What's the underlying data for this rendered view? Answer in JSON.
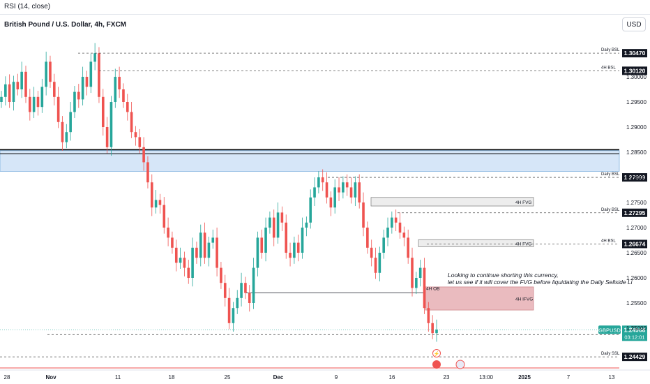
{
  "header": {
    "indicator": "RSI (14, close)",
    "title": "British Pound / U.S. Dollar, 4h, FXCM",
    "currency_button": "USD"
  },
  "note": {
    "line1": "Looking to continue shorting this currency,",
    "line2": "let us see if it will cover the FVG before liquidating the Daily Sellside Li"
  },
  "chart_data": {
    "type": "candlestick",
    "symbol": "GBPUSD",
    "last_price": "1.24968",
    "countdown": "03:12:01",
    "y_ticks": [
      "1.30000",
      "1.29500",
      "1.29000",
      "1.28500",
      "1.28000",
      "1.27500",
      "1.27000",
      "1.26500",
      "1.26000",
      "1.25500",
      "1.25000"
    ],
    "x_ticks": [
      "28",
      "Nov",
      "11",
      "18",
      "25",
      "Dec",
      "9",
      "16",
      "23",
      "13:00",
      "2025",
      "7",
      "13"
    ],
    "levels": [
      {
        "label": "Daily BSL",
        "price": "1.30470"
      },
      {
        "label": "4H BSL",
        "price": "1.30120"
      },
      {
        "label": "Daily BSL",
        "price": "1.27999"
      },
      {
        "label": "Daily BSL",
        "price": "1.27295"
      },
      {
        "label": "4H BSL",
        "price": "1.26674"
      },
      {
        "label": "",
        "price": "1.24871"
      },
      {
        "label": "Daily SSL",
        "price": "1.24429"
      }
    ],
    "zones": [
      {
        "label": "4H FVG",
        "from": 1.2743,
        "to": 1.276
      },
      {
        "label": "4H FVG",
        "from": 1.2662,
        "to": 1.2676
      },
      {
        "label": "4H IFVG",
        "from": 1.2536,
        "to": 1.2582
      },
      {
        "label": "4H OB",
        "from": 1.257,
        "to": 1.257
      }
    ],
    "supply_zone": {
      "from": 1.2812,
      "to": 1.2853
    },
    "close_series": [
      1.296,
      1.2985,
      1.295,
      1.299,
      1.2975,
      1.301,
      1.296,
      1.293,
      1.296,
      1.294,
      1.298,
      1.303,
      1.299,
      1.296,
      1.291,
      1.287,
      1.289,
      1.293,
      1.297,
      1.2955,
      1.3,
      1.298,
      1.303,
      1.3047,
      1.296,
      1.29,
      1.286,
      1.295,
      1.3,
      1.2975,
      1.295,
      1.293,
      1.289,
      1.288,
      1.286,
      1.283,
      1.279,
      1.274,
      1.2755,
      1.2745,
      1.27,
      1.268,
      1.266,
      1.263,
      1.264,
      1.262,
      1.26,
      1.266,
      1.264,
      1.269,
      1.264,
      1.267,
      1.268,
      1.262,
      1.259,
      1.256,
      1.251,
      1.254,
      1.256,
      1.259,
      1.257,
      1.255,
      1.262,
      1.268,
      1.265,
      1.27,
      1.272,
      1.268,
      1.273,
      1.271,
      1.265,
      1.264,
      1.267,
      1.265,
      1.27,
      1.271,
      1.276,
      1.278,
      1.28,
      1.279,
      1.276,
      1.274,
      1.278,
      1.277,
      1.279,
      1.278,
      1.276,
      1.279,
      1.275,
      1.27,
      1.266,
      1.264,
      1.261,
      1.265,
      1.268,
      1.27,
      1.272,
      1.271,
      1.269,
      1.268,
      1.264,
      1.258,
      1.26,
      1.262,
      1.254,
      1.251,
      1.249,
      1.2497
    ]
  }
}
